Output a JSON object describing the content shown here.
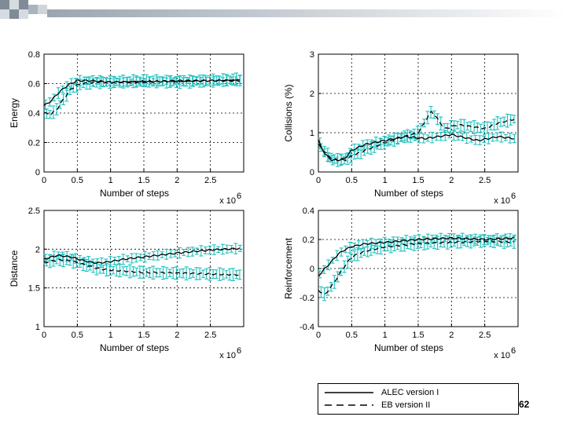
{
  "slide": {
    "page_number": "62"
  },
  "legend": [
    {
      "label": "ALEC version I",
      "style": "solid"
    },
    {
      "label": "EB version II",
      "style": "dashed"
    }
  ],
  "colors": {
    "error_bars": "#1fc1c0",
    "series": "#000000",
    "grid": "#000000",
    "band_start": "#9aa5b0"
  },
  "chart_data": [
    {
      "type": "line",
      "title": "",
      "xlabel": "Number of steps",
      "ylabel": "Energy",
      "x_multiplier": "x 10",
      "x_multiplier_exp": "6",
      "xlim": [
        0,
        3
      ],
      "ylim": [
        0,
        0.8
      ],
      "xticks": [
        "0",
        "0.5",
        "1",
        "1.5",
        "2",
        "2.5"
      ],
      "yticks": [
        "0",
        "0.2",
        "0.4",
        "0.6",
        "0.8"
      ],
      "series": [
        {
          "name": "ALEC version I",
          "style": "solid",
          "x": [
            0,
            0.1,
            0.2,
            0.3,
            0.4,
            0.5,
            0.7,
            1.0,
            1.5,
            2.0,
            2.5,
            2.95
          ],
          "y": [
            0.45,
            0.48,
            0.53,
            0.57,
            0.6,
            0.62,
            0.62,
            0.61,
            0.61,
            0.62,
            0.62,
            0.62
          ]
        },
        {
          "name": "EB version II",
          "style": "dashed",
          "x": [
            0,
            0.1,
            0.2,
            0.3,
            0.4,
            0.5,
            0.6,
            0.8,
            1.0,
            1.5,
            2.0,
            2.5,
            2.95
          ],
          "y": [
            0.4,
            0.39,
            0.43,
            0.5,
            0.56,
            0.59,
            0.6,
            0.61,
            0.61,
            0.62,
            0.61,
            0.62,
            0.63
          ]
        }
      ]
    },
    {
      "type": "line",
      "title": "",
      "xlabel": "Number of steps",
      "ylabel": "Collisions (%)",
      "x_multiplier": "x 10",
      "x_multiplier_exp": "6",
      "xlim": [
        0,
        3
      ],
      "ylim": [
        0,
        3
      ],
      "xticks": [
        "0",
        "0.5",
        "1",
        "1.5",
        "2",
        "2.5"
      ],
      "yticks": [
        "0",
        "1",
        "2",
        "3"
      ],
      "series": [
        {
          "name": "ALEC version I",
          "style": "solid",
          "x": [
            0,
            0.1,
            0.2,
            0.3,
            0.4,
            0.5,
            0.7,
            1.0,
            1.3,
            1.6,
            2.0,
            2.4,
            2.7,
            2.95
          ],
          "y": [
            0.8,
            0.45,
            0.3,
            0.3,
            0.35,
            0.55,
            0.7,
            0.8,
            0.9,
            0.85,
            0.95,
            0.8,
            0.9,
            0.85
          ]
        },
        {
          "name": "EB version II",
          "style": "dashed",
          "x": [
            0,
            0.1,
            0.2,
            0.3,
            0.4,
            0.5,
            0.7,
            1.0,
            1.3,
            1.5,
            1.7,
            1.9,
            2.1,
            2.3,
            2.5,
            2.7,
            2.95
          ],
          "y": [
            0.7,
            0.5,
            0.35,
            0.3,
            0.3,
            0.4,
            0.55,
            0.75,
            0.9,
            1.0,
            1.55,
            1.1,
            1.2,
            1.15,
            1.1,
            1.25,
            1.35
          ]
        }
      ]
    },
    {
      "type": "line",
      "title": "",
      "xlabel": "Number of steps",
      "ylabel": "Distance",
      "x_multiplier": "x 10",
      "x_multiplier_exp": "6",
      "xlim": [
        0,
        3
      ],
      "ylim": [
        1,
        2.5
      ],
      "xticks": [
        "0",
        "0.5",
        "1",
        "1.5",
        "2",
        "2.5"
      ],
      "yticks": [
        "1",
        "1.5",
        "2",
        "2.5"
      ],
      "series": [
        {
          "name": "ALEC version I",
          "style": "solid",
          "x": [
            0,
            0.2,
            0.4,
            0.6,
            0.8,
            1.0,
            1.2,
            1.5,
            2.0,
            2.5,
            2.95
          ],
          "y": [
            1.87,
            1.92,
            1.9,
            1.85,
            1.82,
            1.84,
            1.87,
            1.9,
            1.95,
            1.99,
            2.01
          ]
        },
        {
          "name": "EB version II",
          "style": "dashed",
          "x": [
            0,
            0.2,
            0.4,
            0.6,
            0.8,
            1.0,
            1.2,
            1.5,
            2.0,
            2.5,
            2.95
          ],
          "y": [
            1.83,
            1.86,
            1.85,
            1.8,
            1.75,
            1.73,
            1.72,
            1.7,
            1.69,
            1.68,
            1.67
          ]
        }
      ]
    },
    {
      "type": "line",
      "title": "",
      "xlabel": "Number of steps",
      "ylabel": "Reinforcement",
      "x_multiplier": "x 10",
      "x_multiplier_exp": "6",
      "xlim": [
        0,
        3
      ],
      "ylim": [
        -0.4,
        0.4
      ],
      "xticks": [
        "0",
        "0.5",
        "1",
        "1.5",
        "2",
        "2.5"
      ],
      "yticks": [
        "-0.4",
        "-0.2",
        "0",
        "0.2",
        "0.4"
      ],
      "series": [
        {
          "name": "ALEC version I",
          "style": "solid",
          "x": [
            0,
            0.1,
            0.2,
            0.3,
            0.4,
            0.5,
            0.7,
            1.0,
            1.5,
            2.0,
            2.5,
            2.95
          ],
          "y": [
            -0.05,
            0.0,
            0.05,
            0.1,
            0.13,
            0.15,
            0.17,
            0.18,
            0.2,
            0.21,
            0.2,
            0.21
          ]
        },
        {
          "name": "EB version II",
          "style": "dashed",
          "x": [
            0,
            0.1,
            0.2,
            0.3,
            0.4,
            0.5,
            0.7,
            1.0,
            1.5,
            2.0,
            2.5,
            2.95
          ],
          "y": [
            -0.15,
            -0.18,
            -0.12,
            -0.05,
            0.02,
            0.08,
            0.12,
            0.15,
            0.17,
            0.18,
            0.19,
            0.18
          ]
        }
      ]
    }
  ]
}
